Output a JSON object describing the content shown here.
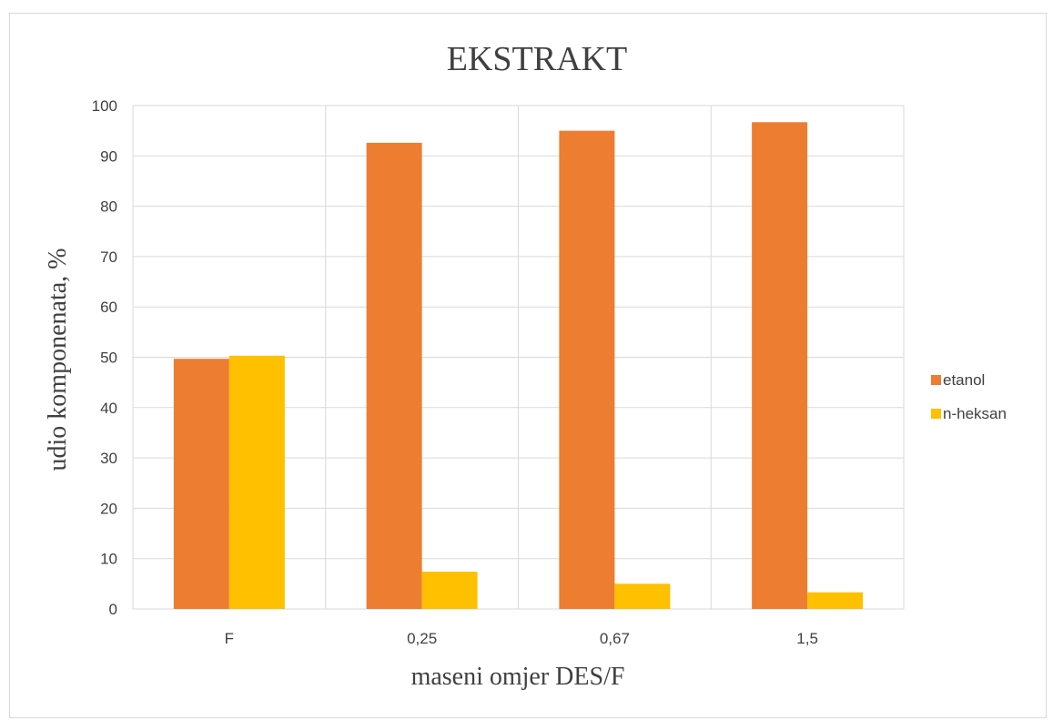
{
  "chart_data": {
    "type": "bar",
    "title": "EKSTRAKT",
    "xlabel": "maseni omjer DES/F",
    "ylabel": "udio komponenata, %",
    "categories": [
      "F",
      "0,25",
      "0,67",
      "1,5"
    ],
    "yticks": [
      "0",
      "10",
      "20",
      "30",
      "40",
      "50",
      "60",
      "70",
      "80",
      "90",
      "100"
    ],
    "ylim": [
      0,
      100
    ],
    "grid": true,
    "legend_position": "right",
    "series": [
      {
        "name": "etanol",
        "color": "#ED7D31",
        "values": [
          49.7,
          92.6,
          95.0,
          96.7
        ]
      },
      {
        "name": "n-heksan",
        "color": "#FFC000",
        "values": [
          50.3,
          7.4,
          5.0,
          3.3
        ]
      }
    ]
  }
}
